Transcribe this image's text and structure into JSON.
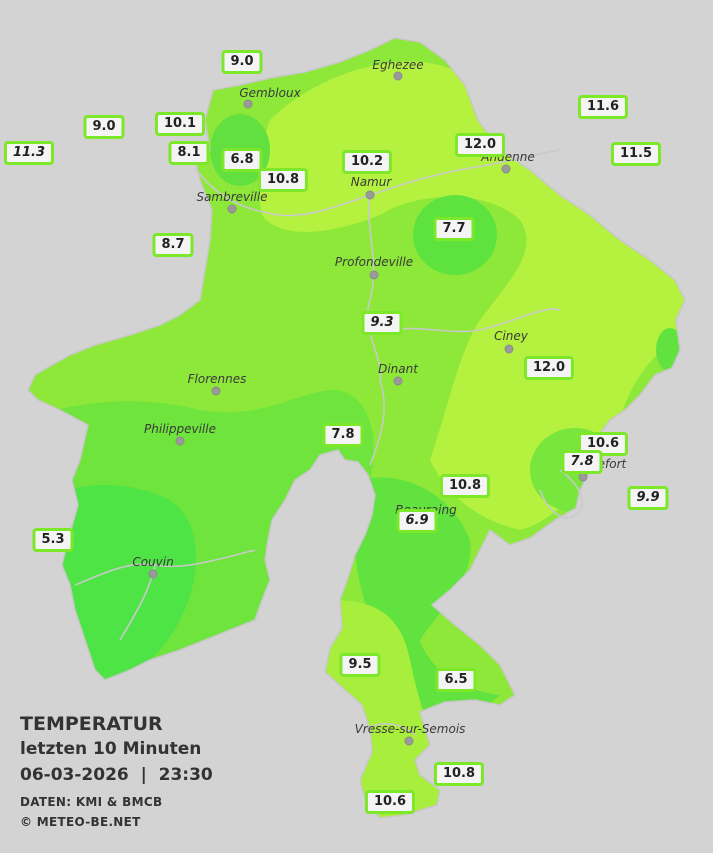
{
  "title": {
    "line1": "TEMPERATUR",
    "line2": "letzten 10 Minuten",
    "line3": "06-03-2026  |  23:30",
    "source": "DATEN: KMI & BMCB",
    "copyright": "© METEO-BE.NET"
  },
  "colors": {
    "background": "#d3d3d3",
    "province_base": "#8ee83a",
    "warm_zone": "#b4f23f",
    "cool_zone": "#55e040",
    "coldest_zone": "#3ce24a",
    "river": "#c9c9c9",
    "label_border": "#7de82a"
  },
  "cities": [
    {
      "name": "Eghezee"
    },
    {
      "name": "Gembloux"
    },
    {
      "name": "Andenne"
    },
    {
      "name": "Namur"
    },
    {
      "name": "Sambreville"
    },
    {
      "name": "Profondeville"
    },
    {
      "name": "Ciney"
    },
    {
      "name": "Dinant"
    },
    {
      "name": "Florennes"
    },
    {
      "name": "Philippeville"
    },
    {
      "name": "Rochefort"
    },
    {
      "name": "Beauraing"
    },
    {
      "name": "Couvin"
    },
    {
      "name": "Vresse-sur-Semois"
    }
  ],
  "stations": [
    {
      "value": "9.0",
      "italic": false
    },
    {
      "value": "9.0",
      "italic": false
    },
    {
      "value": "10.1",
      "italic": false
    },
    {
      "value": "11.3",
      "italic": true
    },
    {
      "value": "8.1",
      "italic": false
    },
    {
      "value": "6.8",
      "italic": false
    },
    {
      "value": "10.8",
      "italic": false
    },
    {
      "value": "10.2",
      "italic": false
    },
    {
      "value": "12.0",
      "italic": false
    },
    {
      "value": "11.6",
      "italic": false
    },
    {
      "value": "11.5",
      "italic": false
    },
    {
      "value": "8.7",
      "italic": false
    },
    {
      "value": "7.7",
      "italic": false
    },
    {
      "value": "9.3",
      "italic": true
    },
    {
      "value": "12.0",
      "italic": false
    },
    {
      "value": "7.8",
      "italic": false
    },
    {
      "value": "10.6",
      "italic": false
    },
    {
      "value": "7.8",
      "italic": true
    },
    {
      "value": "10.8",
      "italic": false
    },
    {
      "value": "9.9",
      "italic": true
    },
    {
      "value": "6.9",
      "italic": true
    },
    {
      "value": "5.3",
      "italic": false
    },
    {
      "value": "9.5",
      "italic": false
    },
    {
      "value": "6.5",
      "italic": false
    },
    {
      "value": "10.8",
      "italic": false
    },
    {
      "value": "10.6",
      "italic": false
    }
  ]
}
